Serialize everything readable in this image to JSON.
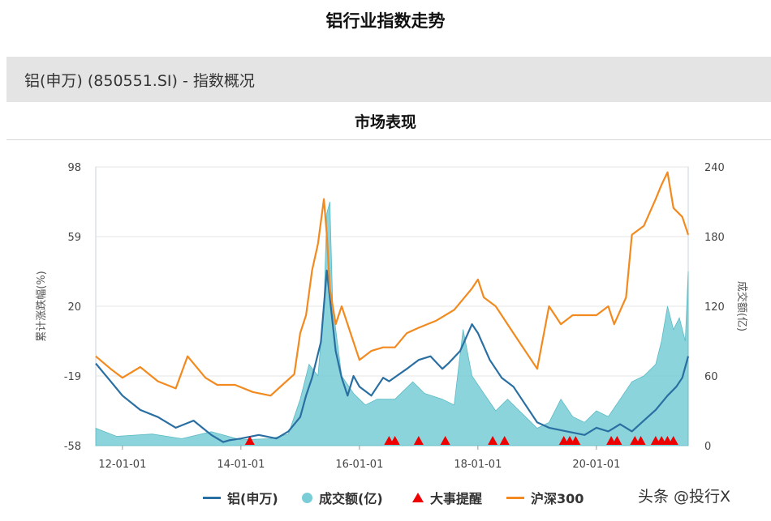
{
  "page_title": "铝行业指数走势",
  "section_header": "铝(申万) (850551.SI) - 指数概况",
  "chart_title": "市场表现",
  "watermark": "头条 @投行X",
  "colors": {
    "aluminum": "#2a6fa2",
    "volume": "#78cdd6",
    "hs300": "#f28a1f",
    "event": "#ee0000"
  },
  "chart_data": {
    "type": "line",
    "y_left_label": "累计涨跌幅(%)",
    "y_right_label": "成交额(亿)",
    "y_left_ticks": [
      "98",
      "59",
      "20",
      "-19",
      "-58"
    ],
    "y_right_ticks": [
      "240",
      "180",
      "120",
      "60",
      "0"
    ],
    "y_left_range": [
      -58,
      98
    ],
    "y_right_range": [
      0,
      240
    ],
    "x_range": [
      2011.55,
      2021.55
    ],
    "x_ticks": [
      {
        "x": 2012.0,
        "label": "12-01-01"
      },
      {
        "x": 2014.0,
        "label": "14-01-01"
      },
      {
        "x": 2016.0,
        "label": "16-01-01"
      },
      {
        "x": 2018.0,
        "label": "18-01-01"
      },
      {
        "x": 2020.0,
        "label": "20-01-01"
      }
    ],
    "grid": true,
    "legend_position": "bottom",
    "series": [
      {
        "name": "铝(申万)",
        "axis": "left",
        "style": "line",
        "x": [
          2011.55,
          2011.8,
          2012.0,
          2012.3,
          2012.6,
          2012.9,
          2013.2,
          2013.5,
          2013.7,
          2013.8,
          2014.0,
          2014.3,
          2014.6,
          2014.8,
          2015.0,
          2015.1,
          2015.2,
          2015.35,
          2015.45,
          2015.5,
          2015.6,
          2015.7,
          2015.8,
          2015.9,
          2016.0,
          2016.2,
          2016.4,
          2016.5,
          2016.8,
          2017.0,
          2017.2,
          2017.4,
          2017.5,
          2017.7,
          2017.9,
          2018.0,
          2018.2,
          2018.4,
          2018.6,
          2018.8,
          2019.0,
          2019.2,
          2019.5,
          2019.8,
          2020.0,
          2020.2,
          2020.4,
          2020.6,
          2020.8,
          2021.0,
          2021.2,
          2021.35,
          2021.45,
          2021.55
        ],
        "y": [
          -12,
          -22,
          -30,
          -38,
          -42,
          -48,
          -44,
          -52,
          -56,
          -55,
          -54,
          -52,
          -54,
          -50,
          -42,
          -30,
          -20,
          0,
          40,
          25,
          -5,
          -20,
          -30,
          -19,
          -25,
          -30,
          -20,
          -22,
          -15,
          -10,
          -8,
          -15,
          -12,
          -5,
          10,
          5,
          -10,
          -20,
          -25,
          -35,
          -45,
          -48,
          -50,
          -52,
          -48,
          -50,
          -46,
          -50,
          -44,
          -38,
          -30,
          -25,
          -20,
          -8
        ]
      },
      {
        "name": "沪深300",
        "axis": "left",
        "style": "line",
        "x": [
          2011.55,
          2011.8,
          2012.0,
          2012.3,
          2012.6,
          2012.9,
          2013.1,
          2013.4,
          2013.6,
          2013.9,
          2014.2,
          2014.5,
          2014.7,
          2014.9,
          2015.0,
          2015.1,
          2015.2,
          2015.3,
          2015.4,
          2015.45,
          2015.5,
          2015.6,
          2015.7,
          2015.8,
          2016.0,
          2016.2,
          2016.4,
          2016.6,
          2016.8,
          2017.0,
          2017.3,
          2017.6,
          2017.9,
          2018.0,
          2018.1,
          2018.3,
          2018.6,
          2018.9,
          2019.0,
          2019.2,
          2019.4,
          2019.6,
          2019.8,
          2020.0,
          2020.2,
          2020.3,
          2020.5,
          2020.6,
          2020.8,
          2021.0,
          2021.1,
          2021.2,
          2021.3,
          2021.45,
          2021.55
        ],
        "y": [
          -8,
          -15,
          -20,
          -14,
          -22,
          -26,
          -8,
          -20,
          -24,
          -24,
          -28,
          -30,
          -24,
          -18,
          5,
          15,
          40,
          55,
          80,
          60,
          30,
          10,
          20,
          10,
          -10,
          -5,
          -3,
          -3,
          5,
          8,
          12,
          18,
          30,
          35,
          25,
          20,
          5,
          -10,
          -15,
          20,
          10,
          15,
          15,
          15,
          20,
          10,
          25,
          60,
          65,
          80,
          88,
          95,
          75,
          70,
          60
        ]
      }
    ],
    "volume": {
      "name": "成交额(亿)",
      "axis": "right",
      "style": "area",
      "x": [
        2011.55,
        2011.9,
        2012.5,
        2013.0,
        2013.5,
        2014.0,
        2014.5,
        2014.8,
        2015.0,
        2015.15,
        2015.3,
        2015.4,
        2015.45,
        2015.5,
        2015.55,
        2015.7,
        2015.9,
        2016.1,
        2016.3,
        2016.6,
        2016.9,
        2017.1,
        2017.4,
        2017.6,
        2017.75,
        2017.9,
        2018.1,
        2018.3,
        2018.5,
        2018.8,
        2019.0,
        2019.2,
        2019.4,
        2019.6,
        2019.8,
        2020.0,
        2020.2,
        2020.4,
        2020.6,
        2020.8,
        2021.0,
        2021.1,
        2021.2,
        2021.3,
        2021.4,
        2021.5,
        2021.55
      ],
      "y": [
        15,
        8,
        10,
        6,
        12,
        5,
        6,
        10,
        40,
        70,
        60,
        120,
        200,
        210,
        120,
        60,
        45,
        35,
        40,
        40,
        55,
        45,
        40,
        35,
        100,
        60,
        45,
        30,
        40,
        25,
        15,
        20,
        40,
        25,
        20,
        30,
        25,
        40,
        55,
        60,
        70,
        90,
        120,
        100,
        110,
        90,
        150
      ]
    },
    "event_markers": {
      "name": "大事提醒",
      "x": [
        2014.15,
        2016.5,
        2016.6,
        2017.0,
        2017.45,
        2018.25,
        2018.45,
        2019.45,
        2019.55,
        2019.65,
        2020.25,
        2020.35,
        2020.65,
        2020.75,
        2021.0,
        2021.1,
        2021.2,
        2021.3
      ]
    }
  }
}
